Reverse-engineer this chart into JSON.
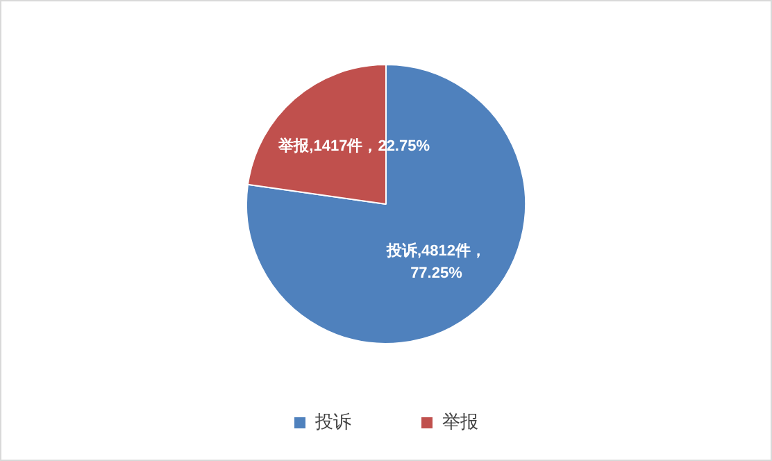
{
  "chart_data": {
    "type": "pie",
    "categories": [
      "投诉",
      "举报"
    ],
    "values": [
      4812,
      1417
    ],
    "colors": [
      "#4f81bd",
      "#c0504d"
    ],
    "value_labels": [
      "投诉,4812件，77.25%",
      "举报,1417件，22.75%"
    ],
    "legend": "bottom"
  }
}
